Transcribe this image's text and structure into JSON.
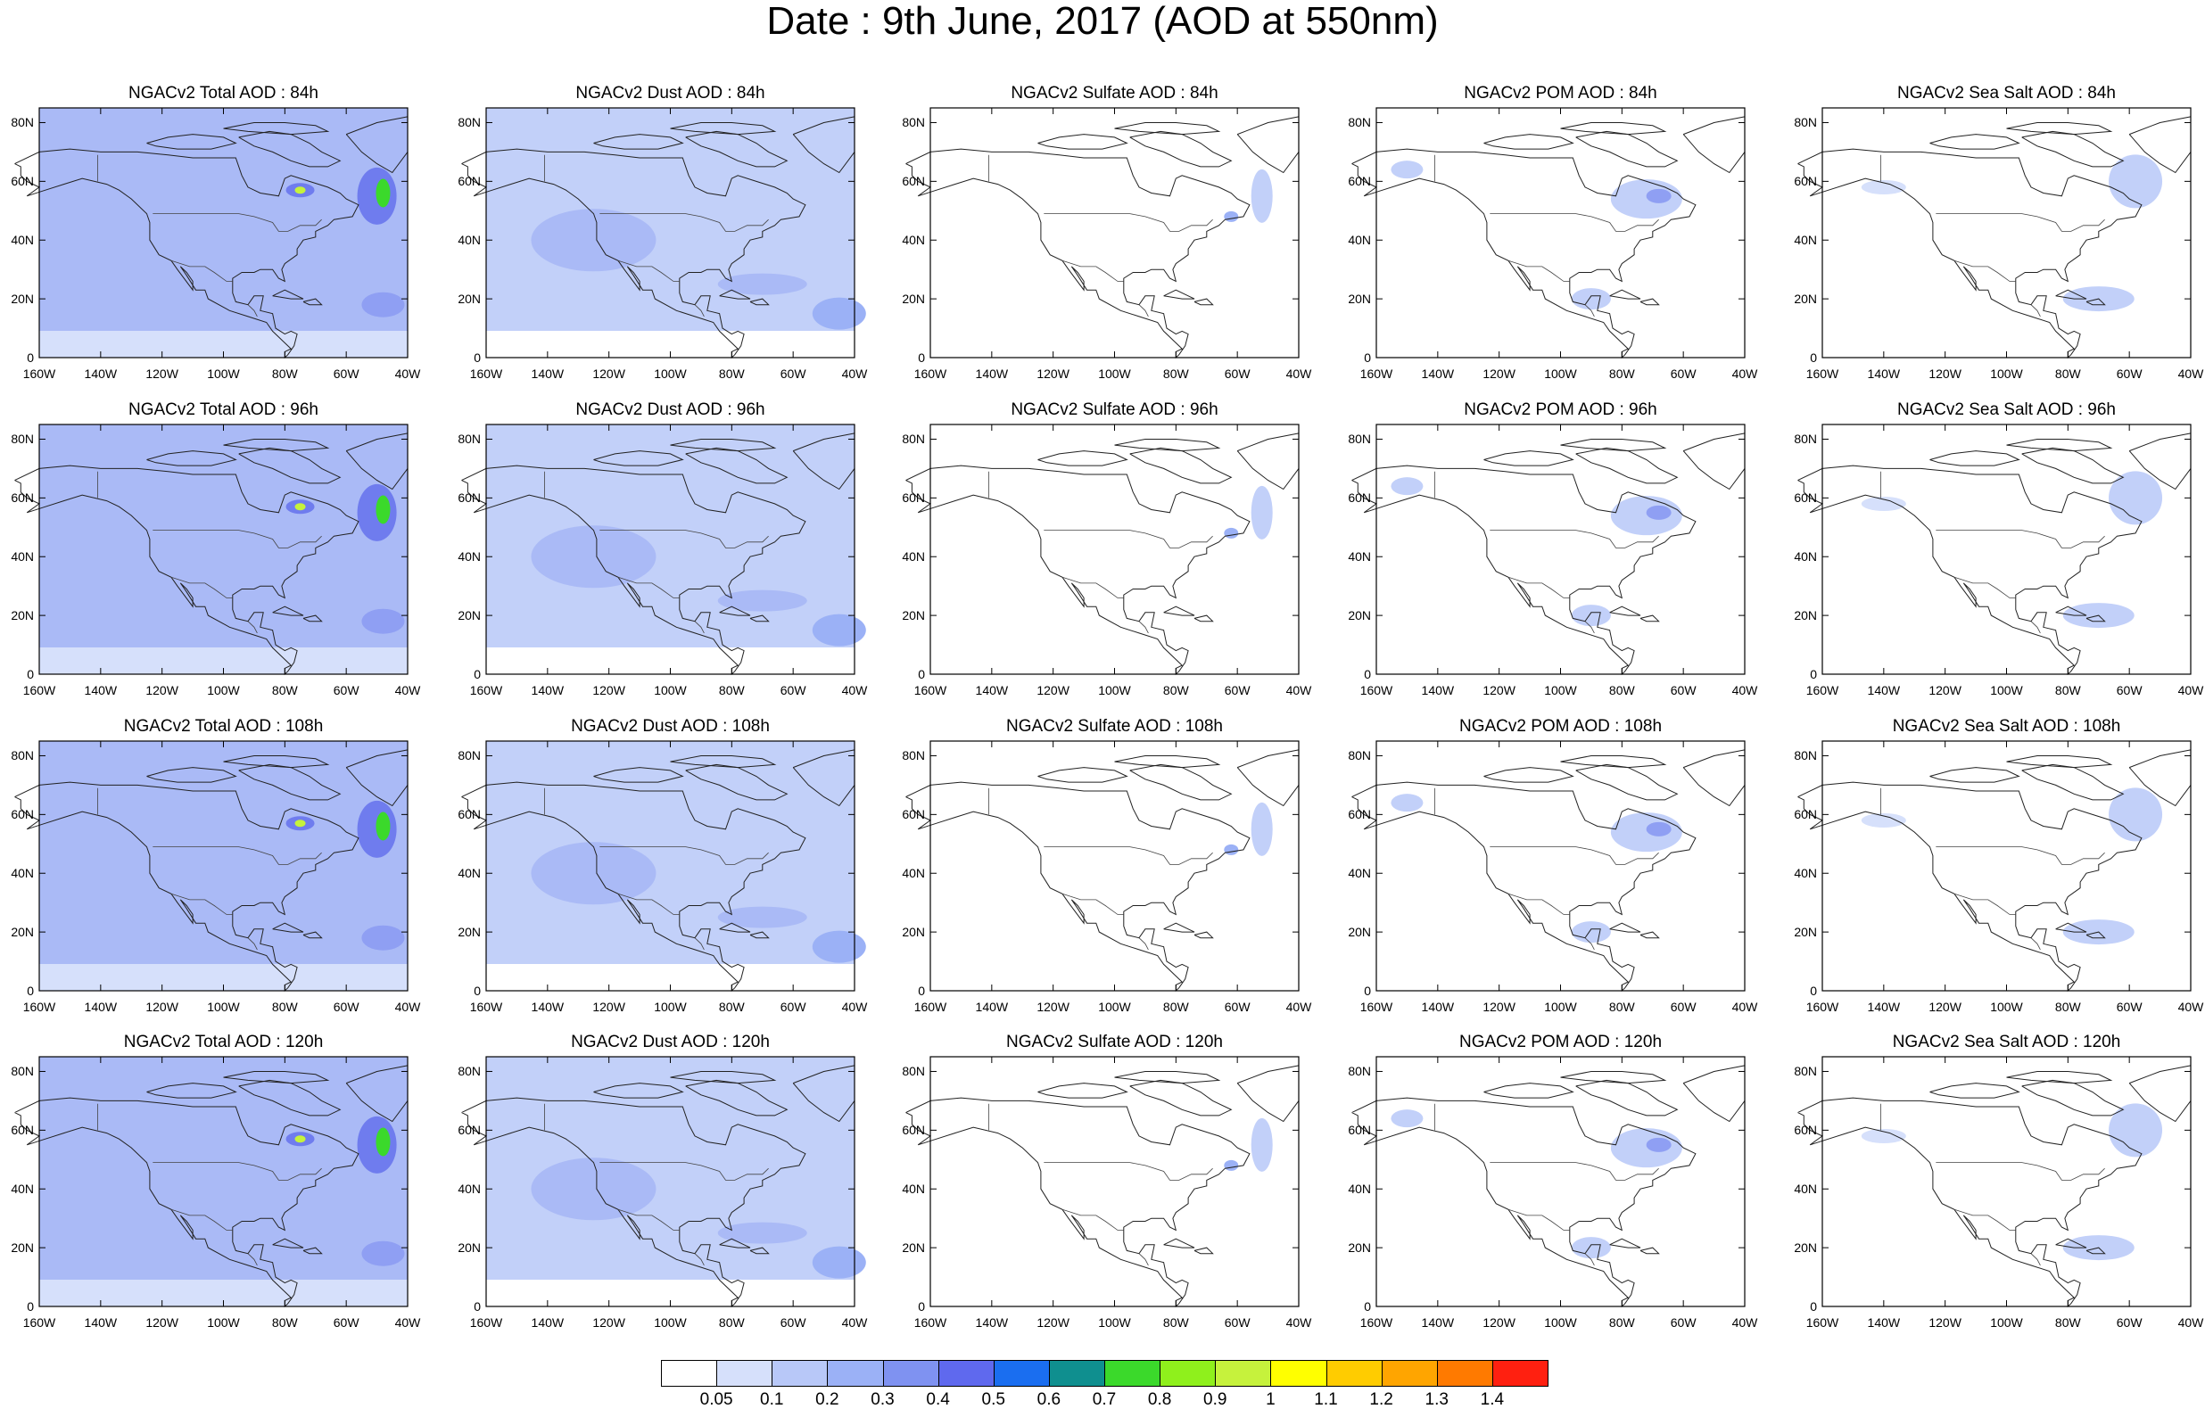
{
  "title": "Date : 9th June, 2017 (AOD at 550nm)",
  "lon_labels": [
    "160W",
    "140W",
    "120W",
    "100W",
    "80W",
    "60W",
    "40W"
  ],
  "lat_labels": [
    "80N",
    "60N",
    "40N",
    "20N",
    "0"
  ],
  "panels": [
    [
      "NGACv2 Total AOD : 84h",
      "NGACv2 Dust AOD : 84h",
      "NGACv2 Sulfate AOD : 84h",
      "NGACv2 POM AOD : 84h",
      "NGACv2 Sea Salt AOD : 84h"
    ],
    [
      "NGACv2 Total AOD : 96h",
      "NGACv2 Dust AOD : 96h",
      "NGACv2 Sulfate AOD : 96h",
      "NGACv2 POM AOD : 96h",
      "NGACv2 Sea Salt AOD : 96h"
    ],
    [
      "NGACv2 Total AOD : 108h",
      "NGACv2 Dust AOD : 108h",
      "NGACv2 Sulfate AOD : 108h",
      "NGACv2 POM AOD : 108h",
      "NGACv2 Sea Salt AOD : 108h"
    ],
    [
      "NGACv2 Total AOD : 120h",
      "NGACv2 Dust AOD : 120h",
      "NGACv2 Sulfate AOD : 120h",
      "NGACv2 POM AOD : 120h",
      "NGACv2 Sea Salt  AOD : 120h"
    ]
  ],
  "legend": {
    "labels": [
      "0.05",
      "0.1",
      "0.2",
      "0.3",
      "0.4",
      "0.5",
      "0.6",
      "0.7",
      "0.8",
      "0.9",
      "1",
      "1.1",
      "1.2",
      "1.3",
      "1.4"
    ],
    "colors": [
      "#ffffff",
      "#d6e0fb",
      "#b8c8f8",
      "#9bb1f6",
      "#7f92f1",
      "#5f69ee",
      "#1a6ef0",
      "#0f8f8f",
      "#3bd92b",
      "#8ff01c",
      "#c6f23c",
      "#ffff00",
      "#ffcc00",
      "#ffa500",
      "#ff7a00",
      "#ff2010"
    ]
  },
  "map_fill": {
    "total": "#aabaf6",
    "dust": "#c2d0f9",
    "high_1": "#6f7cee",
    "high_2": "#3bd92b",
    "high_3": "#c6f23c"
  }
}
